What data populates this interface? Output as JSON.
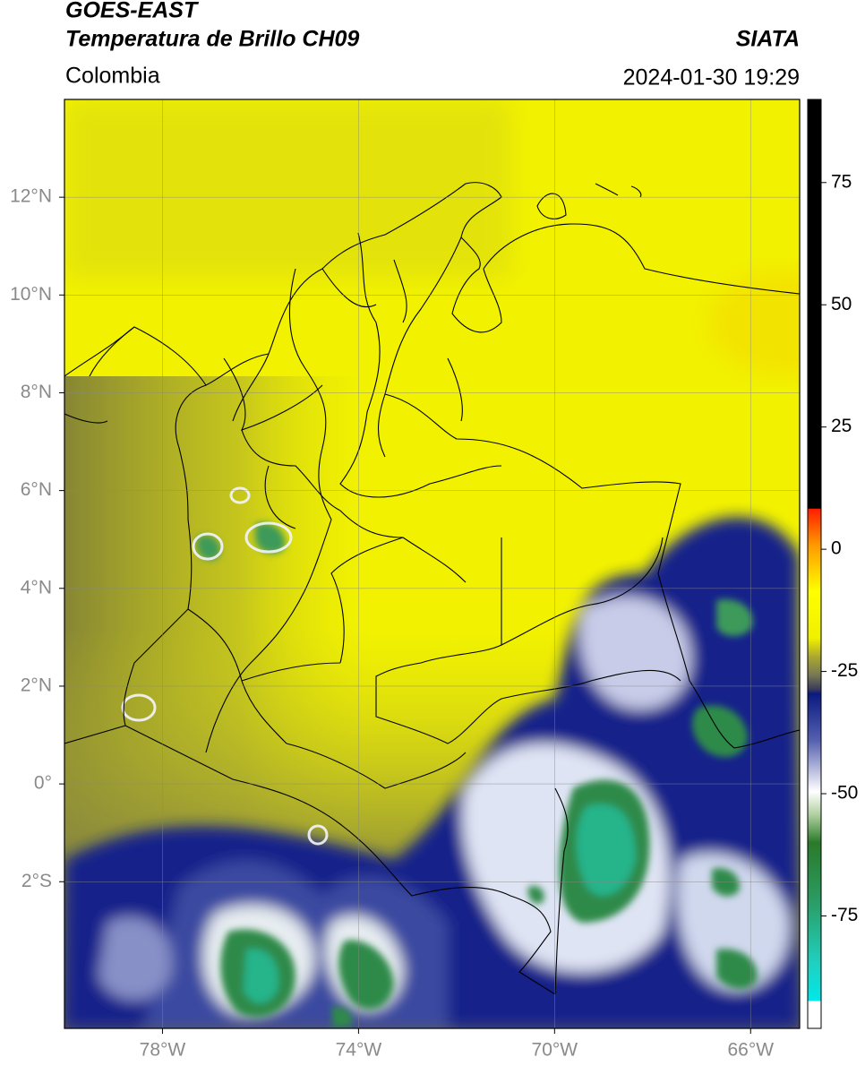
{
  "header": {
    "satellite": "GOES-EAST",
    "title": "Temperatura de Brillo CH09",
    "source": "SIATA",
    "region": "Colombia",
    "datetime": "2024-01-30 19:29"
  },
  "map": {
    "xlim": [
      -80,
      -65
    ],
    "ylim": [
      -5,
      14
    ],
    "xticks": [
      {
        "value": -78,
        "label": "78°W"
      },
      {
        "value": -74,
        "label": "74°W"
      },
      {
        "value": -70,
        "label": "70°W"
      },
      {
        "value": -66,
        "label": "66°W"
      }
    ],
    "yticks": [
      {
        "value": 12,
        "label": "12°N"
      },
      {
        "value": 10,
        "label": "10°N"
      },
      {
        "value": 8,
        "label": "8°N"
      },
      {
        "value": 6,
        "label": "6°N"
      },
      {
        "value": 4,
        "label": "4°N"
      },
      {
        "value": 2,
        "label": "2°N"
      },
      {
        "value": 0,
        "label": "0°"
      },
      {
        "value": -2,
        "label": "2°S"
      }
    ],
    "grid": true
  },
  "colorbar": {
    "lim": [
      -98,
      92
    ],
    "ticks": [
      75,
      50,
      25,
      0,
      -25,
      -50,
      -75
    ]
  }
}
